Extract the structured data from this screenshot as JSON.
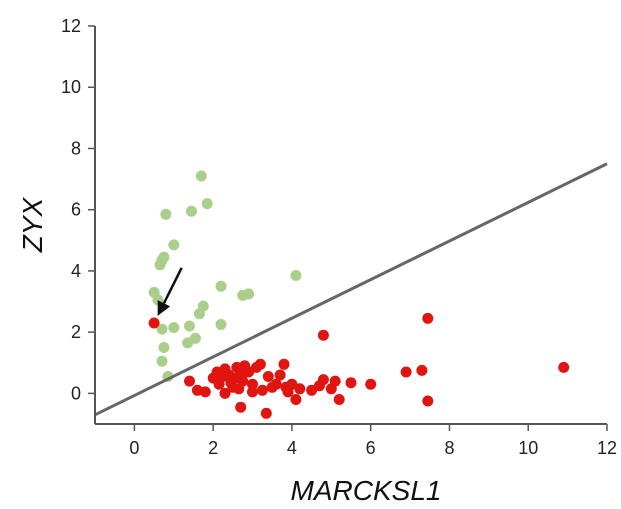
{
  "chart_data": {
    "type": "scatter",
    "title": "",
    "xlabel": "MARCKSL1",
    "ylabel": "ZYX",
    "xlim": [
      -1,
      12
    ],
    "ylim": [
      -1,
      12
    ],
    "xticks": [
      0,
      2,
      4,
      6,
      8,
      10,
      12
    ],
    "yticks": [
      0,
      2,
      4,
      6,
      8,
      10,
      12
    ],
    "grid": false,
    "legend": "none",
    "colors": {
      "green": "#a9cf8a",
      "red": "#e0150f",
      "line": "#666666",
      "axis": "#555555"
    },
    "series": [
      {
        "color": "green",
        "points": [
          [
            1.7,
            7.1
          ],
          [
            0.8,
            5.85
          ],
          [
            1.45,
            5.95
          ],
          [
            1.85,
            6.2
          ],
          [
            1.0,
            4.85
          ],
          [
            0.75,
            4.45
          ],
          [
            0.65,
            4.2
          ],
          [
            0.7,
            4.35
          ],
          [
            0.5,
            3.3
          ],
          [
            0.6,
            3.05
          ],
          [
            2.2,
            3.5
          ],
          [
            2.9,
            3.25
          ],
          [
            2.75,
            3.2
          ],
          [
            4.1,
            3.85
          ],
          [
            1.75,
            2.85
          ],
          [
            1.65,
            2.6
          ],
          [
            1.0,
            2.15
          ],
          [
            0.7,
            2.1
          ],
          [
            1.4,
            2.2
          ],
          [
            2.2,
            2.25
          ],
          [
            0.75,
            1.5
          ],
          [
            1.35,
            1.65
          ],
          [
            1.55,
            1.8
          ],
          [
            0.7,
            1.05
          ],
          [
            0.85,
            0.55
          ]
        ]
      },
      {
        "color": "red",
        "points": [
          [
            0.5,
            2.3
          ],
          [
            4.8,
            1.9
          ],
          [
            7.45,
            2.45
          ],
          [
            10.9,
            0.85
          ],
          [
            1.4,
            0.4
          ],
          [
            1.6,
            0.1
          ],
          [
            1.8,
            0.05
          ],
          [
            2.0,
            0.5
          ],
          [
            2.1,
            0.7
          ],
          [
            2.15,
            0.3
          ],
          [
            2.25,
            0.55
          ],
          [
            2.3,
            0.8
          ],
          [
            2.4,
            0.6
          ],
          [
            2.45,
            0.35
          ],
          [
            2.5,
            0.2
          ],
          [
            2.55,
            0.5
          ],
          [
            2.6,
            0.85
          ],
          [
            2.65,
            0.15
          ],
          [
            2.7,
            0.6
          ],
          [
            2.75,
            0.4
          ],
          [
            2.8,
            0.9
          ],
          [
            2.9,
            0.7
          ],
          [
            3.0,
            0.3
          ],
          [
            3.1,
            0.85
          ],
          [
            3.2,
            0.95
          ],
          [
            3.25,
            0.1
          ],
          [
            3.4,
            0.55
          ],
          [
            3.5,
            0.2
          ],
          [
            3.6,
            0.3
          ],
          [
            3.7,
            0.6
          ],
          [
            3.8,
            0.95
          ],
          [
            3.85,
            0.2
          ],
          [
            3.9,
            0.05
          ],
          [
            4.0,
            0.3
          ],
          [
            4.1,
            -0.2
          ],
          [
            4.2,
            0.15
          ],
          [
            4.5,
            0.1
          ],
          [
            4.7,
            0.25
          ],
          [
            4.8,
            0.45
          ],
          [
            5.0,
            0.15
          ],
          [
            5.1,
            0.4
          ],
          [
            5.2,
            -0.2
          ],
          [
            5.5,
            0.35
          ],
          [
            6.0,
            0.3
          ],
          [
            6.9,
            0.7
          ],
          [
            7.3,
            0.75
          ],
          [
            7.45,
            -0.25
          ],
          [
            2.7,
            -0.45
          ],
          [
            3.35,
            -0.65
          ],
          [
            2.3,
            0.0
          ],
          [
            3.0,
            0.05
          ]
        ]
      }
    ],
    "trend_line": {
      "from": [
        -1,
        -0.7
      ],
      "to": [
        12,
        7.5
      ]
    },
    "annotation": {
      "type": "arrow",
      "target": [
        0.5,
        2.3
      ],
      "start": [
        1.2,
        4.1
      ]
    }
  }
}
